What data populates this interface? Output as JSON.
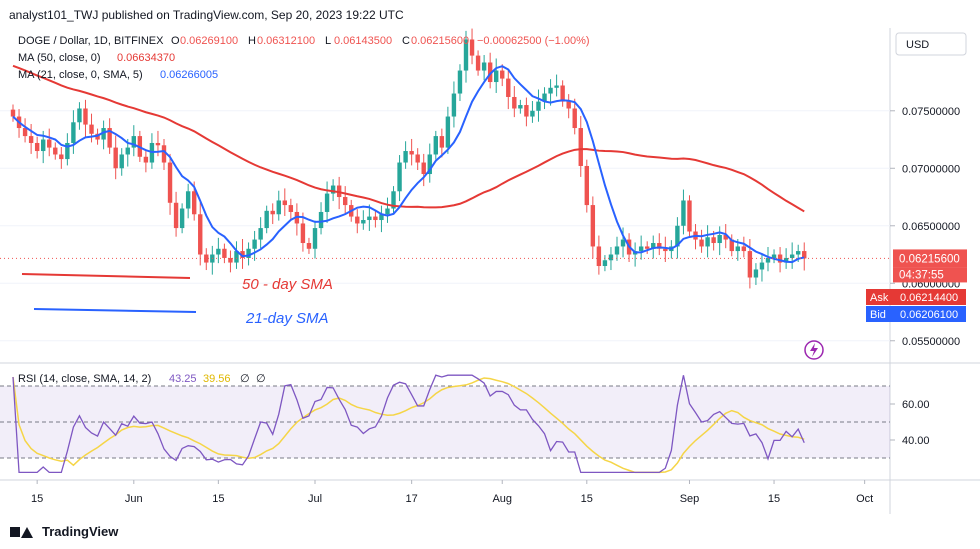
{
  "header": {
    "publisher": "analyst101_TWJ published on TradingView.com, Sep 20, 2023 19:22 UTC"
  },
  "legend": {
    "symbol": "DOGE / Dollar, 1D, BITFINEX",
    "ohlc": [
      {
        "k": "O",
        "v": "0.06269100"
      },
      {
        "k": "H",
        "v": "0.06312100"
      },
      {
        "k": "L",
        "v": "0.06143500"
      },
      {
        "k": "C",
        "v": "0.06215600"
      }
    ],
    "change": "−0.00062500 (−1.00%)",
    "ma50_label": "MA (50, close, 0)",
    "ma50_value": "0.06634370",
    "ma21_label": "MA (21, close, 0, SMA, 5)",
    "ma21_value": "0.06266005"
  },
  "annotations": {
    "sma50": "50 - day SMA",
    "sma21": "21-day SMA"
  },
  "price_scale": {
    "currency": "USD",
    "current_price": "0.06215600",
    "countdown": "04:37:55",
    "ask_label": "Ask",
    "ask_value": "0.06214400",
    "bid_label": "Bid",
    "bid_value": "0.06206100"
  },
  "rsi": {
    "label": "RSI (14, close, SMA, 14, 2)",
    "value1": "43.25",
    "value2": "39.56",
    "value3": "∅",
    "value4": "∅"
  },
  "footer": {
    "brand": "TradingView"
  },
  "colors": {
    "up": "#26a69a",
    "down": "#ef5350",
    "ma50": "#e53935",
    "ma21": "#2962ff",
    "rsi": "#7e57c2",
    "rsi_ma": "#f5d547",
    "ask": "#e53935",
    "bid": "#2962ff"
  },
  "chart_data": {
    "type": "candlestick",
    "price_axis_ticks": [
      0.055,
      0.06,
      0.065,
      0.07,
      0.075
    ],
    "price_axis_labels": [
      "0.05500000",
      "0.06000000",
      "0.06500000",
      "0.07000000",
      "0.07500000"
    ],
    "rsi_axis_ticks": [
      40,
      60
    ],
    "rsi_axis_labels": [
      "40.00",
      "60.00"
    ],
    "x_labels": [
      {
        "d": 4,
        "label": "15"
      },
      {
        "d": 20,
        "label": "Jun"
      },
      {
        "d": 34,
        "label": "15"
      },
      {
        "d": 50,
        "label": "Jul"
      },
      {
        "d": 66,
        "label": "17"
      },
      {
        "d": 81,
        "label": "Aug"
      },
      {
        "d": 95,
        "label": "15"
      },
      {
        "d": 112,
        "label": "Sep"
      },
      {
        "d": 126,
        "label": "15"
      },
      {
        "d": 141,
        "label": "Oct"
      }
    ],
    "closes": [
      0.0745,
      0.0735,
      0.0728,
      0.0722,
      0.0715,
      0.0725,
      0.0718,
      0.0712,
      0.0708,
      0.0722,
      0.074,
      0.0752,
      0.0738,
      0.073,
      0.0725,
      0.0735,
      0.0718,
      0.07,
      0.0712,
      0.0718,
      0.0728,
      0.071,
      0.0705,
      0.0722,
      0.072,
      0.0705,
      0.067,
      0.0648,
      0.0665,
      0.068,
      0.066,
      0.0625,
      0.0618,
      0.0625,
      0.063,
      0.0622,
      0.0618,
      0.0628,
      0.0622,
      0.063,
      0.0638,
      0.0648,
      0.0663,
      0.066,
      0.0672,
      0.0668,
      0.0662,
      0.0652,
      0.0635,
      0.063,
      0.0648,
      0.0662,
      0.0678,
      0.0685,
      0.0675,
      0.0668,
      0.0658,
      0.0652,
      0.0655,
      0.0658,
      0.0655,
      0.066,
      0.0665,
      0.068,
      0.0705,
      0.0715,
      0.0712,
      0.0705,
      0.0695,
      0.0712,
      0.0728,
      0.0718,
      0.0745,
      0.0765,
      0.0785,
      0.0812,
      0.0798,
      0.0785,
      0.0792,
      0.0775,
      0.0785,
      0.0778,
      0.0762,
      0.0752,
      0.0755,
      0.0745,
      0.075,
      0.0758,
      0.0765,
      0.077,
      0.0772,
      0.0758,
      0.0752,
      0.0735,
      0.0702,
      0.0668,
      0.0632,
      0.0615,
      0.062,
      0.0625,
      0.0632,
      0.0638,
      0.0625,
      0.0628,
      0.0632,
      0.063,
      0.0635,
      0.063,
      0.0628,
      0.0632,
      0.065,
      0.0672,
      0.0645,
      0.0638,
      0.0632,
      0.064,
      0.0635,
      0.0642,
      0.0638,
      0.0628,
      0.0632,
      0.0628,
      0.0605,
      0.0612,
      0.0618,
      0.0622,
      0.0625,
      0.0618,
      0.0622,
      0.0625,
      0.0628,
      0.06216
    ],
    "ma50": {
      "label": "MA (50, close, 0)",
      "last": 0.0663437
    },
    "ma21": {
      "label": "MA (21, close, 0, SMA, 5)",
      "last": 0.06266005
    },
    "rsi": {
      "last": 43.25,
      "ma_last": 39.56,
      "upper_band": 70,
      "lower_band": 30,
      "mid_band": 50
    },
    "ylim": [
      0.0535,
      0.0822
    ]
  }
}
